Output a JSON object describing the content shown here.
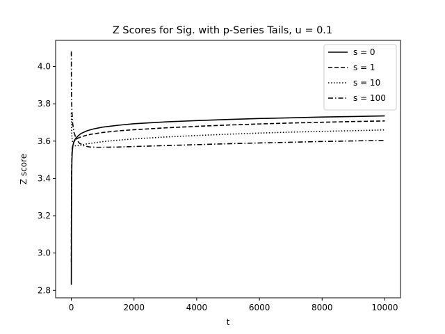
{
  "chart_data": {
    "type": "line",
    "title": "Z Scores for Sig. with p-Series Tails, u = 0.1",
    "xlabel": "t",
    "ylabel": "Z score",
    "xlim": [
      -500,
      10500
    ],
    "ylim": [
      2.76,
      4.14
    ],
    "xticks": [
      0,
      2000,
      4000,
      6000,
      8000,
      10000
    ],
    "yticks": [
      2.8,
      3.0,
      3.2,
      3.4,
      3.6,
      3.8,
      4.0
    ],
    "xtick_labels": [
      "0",
      "2000",
      "4000",
      "6000",
      "8000",
      "10000"
    ],
    "ytick_labels": [
      "2.8",
      "3.0",
      "3.2",
      "3.4",
      "3.6",
      "3.8",
      "4.0"
    ],
    "legend_position": "upper right",
    "grid": false,
    "series": [
      {
        "name": "s = 0",
        "style": "solid",
        "x": [
          1,
          5,
          10,
          20,
          30,
          50,
          80,
          120,
          200,
          300,
          500,
          700,
          1000,
          1500,
          2000,
          3000,
          4000,
          5000,
          6000,
          7000,
          8000,
          9000,
          10000
        ],
        "y": [
          2.83,
          3.2,
          3.38,
          3.5,
          3.54,
          3.575,
          3.595,
          3.61,
          3.625,
          3.64,
          3.655,
          3.665,
          3.675,
          3.685,
          3.693,
          3.703,
          3.71,
          3.716,
          3.721,
          3.725,
          3.729,
          3.732,
          3.735
        ]
      },
      {
        "name": "s = 1",
        "style": "dashed",
        "x": [
          1,
          5,
          10,
          20,
          30,
          50,
          80,
          120,
          200,
          300,
          500,
          700,
          1000,
          1500,
          2000,
          3000,
          4000,
          5000,
          6000,
          7000,
          8000,
          9000,
          10000
        ],
        "y": [
          2.95,
          3.3,
          3.45,
          3.53,
          3.56,
          3.58,
          3.595,
          3.605,
          3.615,
          3.622,
          3.632,
          3.639,
          3.646,
          3.655,
          3.661,
          3.671,
          3.679,
          3.686,
          3.692,
          3.697,
          3.701,
          3.705,
          3.708
        ]
      },
      {
        "name": "s = 10",
        "style": "dotted",
        "x": [
          1,
          5,
          10,
          20,
          30,
          50,
          80,
          120,
          200,
          300,
          500,
          700,
          1000,
          1500,
          2000,
          3000,
          4000,
          5000,
          6000,
          7000,
          8000,
          9000,
          10000
        ],
        "y": [
          3.75,
          3.7,
          3.66,
          3.62,
          3.605,
          3.59,
          3.58,
          3.575,
          3.575,
          3.578,
          3.585,
          3.59,
          3.597,
          3.605,
          3.612,
          3.622,
          3.63,
          3.637,
          3.643,
          3.648,
          3.652,
          3.656,
          3.66
        ]
      },
      {
        "name": "s = 100",
        "style": "dashdot",
        "x": [
          1,
          3,
          5,
          10,
          20,
          40,
          80,
          150,
          250,
          400,
          600,
          800,
          1000,
          1500,
          2000,
          3000,
          4000,
          5000,
          6000,
          7000,
          8000,
          9000,
          10000
        ],
        "y": [
          4.08,
          3.95,
          3.88,
          3.82,
          3.76,
          3.7,
          3.65,
          3.615,
          3.59,
          3.575,
          3.568,
          3.567,
          3.567,
          3.568,
          3.571,
          3.576,
          3.581,
          3.586,
          3.59,
          3.594,
          3.598,
          3.601,
          3.604
        ]
      }
    ]
  }
}
